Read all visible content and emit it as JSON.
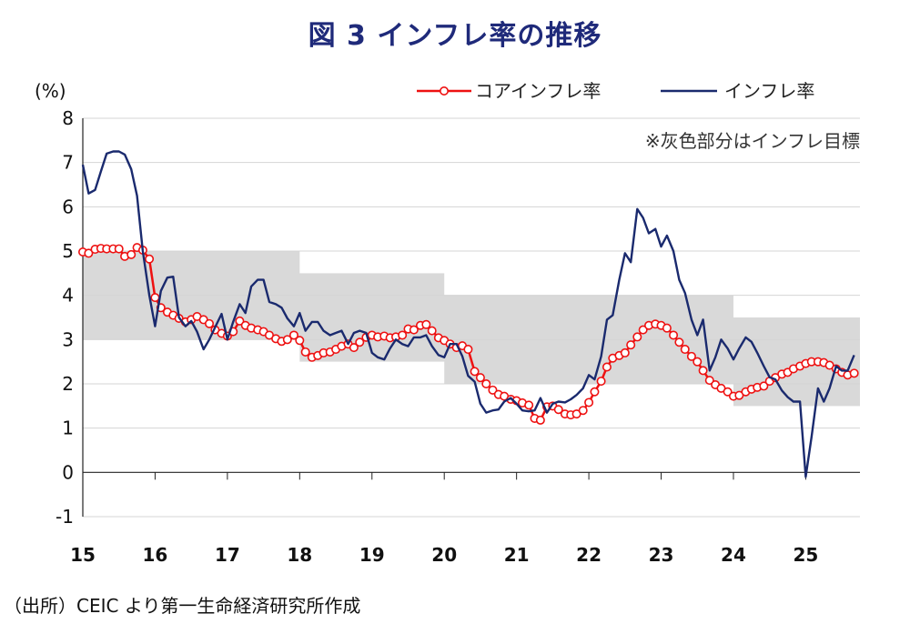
{
  "chart_data": {
    "type": "line",
    "title": "図 3  インフレ率の推移",
    "ylabel": "(%)",
    "ylim": [
      -1,
      8
    ],
    "yticks": [
      "8",
      "7",
      "6",
      "5",
      "4",
      "3",
      "2",
      "1",
      "0",
      "-1"
    ],
    "xlim": [
      2015.0,
      2025.75
    ],
    "xticks": [
      "15",
      "16",
      "17",
      "18",
      "19",
      "20",
      "21",
      "22",
      "23",
      "24",
      "25"
    ],
    "grid": "horizontal",
    "legend_position": "top-right",
    "annotation": "※灰色部分はインフレ目標",
    "target_band": {
      "color": "#d9d9d9",
      "segments": [
        {
          "x0": 2015.0,
          "x1": 2018.0,
          "low": 3.0,
          "high": 5.0
        },
        {
          "x0": 2018.0,
          "x1": 2020.0,
          "low": 2.5,
          "high": 4.5
        },
        {
          "x0": 2020.0,
          "x1": 2024.0,
          "low": 2.0,
          "high": 4.0
        },
        {
          "x0": 2024.0,
          "x1": 2025.75,
          "low": 1.5,
          "high": 3.5
        }
      ]
    },
    "series": [
      {
        "name": "コアインフレ率",
        "color": "#ee1111",
        "marker": "open-circle",
        "points": [
          [
            2015.0,
            4.98
          ],
          [
            2015.08,
            4.95
          ],
          [
            2015.17,
            5.04
          ],
          [
            2015.25,
            5.06
          ],
          [
            2015.33,
            5.05
          ],
          [
            2015.42,
            5.05
          ],
          [
            2015.5,
            5.05
          ],
          [
            2015.58,
            4.88
          ],
          [
            2015.67,
            4.92
          ],
          [
            2015.75,
            5.08
          ],
          [
            2015.83,
            5.02
          ],
          [
            2015.92,
            4.82
          ],
          [
            2016.0,
            3.95
          ],
          [
            2016.08,
            3.72
          ],
          [
            2016.17,
            3.62
          ],
          [
            2016.25,
            3.55
          ],
          [
            2016.33,
            3.48
          ],
          [
            2016.42,
            3.4
          ],
          [
            2016.5,
            3.45
          ],
          [
            2016.58,
            3.52
          ],
          [
            2016.67,
            3.45
          ],
          [
            2016.75,
            3.36
          ],
          [
            2016.83,
            3.22
          ],
          [
            2016.92,
            3.14
          ],
          [
            2017.0,
            3.08
          ],
          [
            2017.08,
            3.18
          ],
          [
            2017.17,
            3.42
          ],
          [
            2017.25,
            3.32
          ],
          [
            2017.33,
            3.26
          ],
          [
            2017.42,
            3.22
          ],
          [
            2017.5,
            3.18
          ],
          [
            2017.58,
            3.1
          ],
          [
            2017.67,
            3.02
          ],
          [
            2017.75,
            2.96
          ],
          [
            2017.83,
            3.0
          ],
          [
            2017.92,
            3.1
          ],
          [
            2018.0,
            2.98
          ],
          [
            2018.08,
            2.72
          ],
          [
            2018.17,
            2.6
          ],
          [
            2018.25,
            2.64
          ],
          [
            2018.33,
            2.7
          ],
          [
            2018.42,
            2.72
          ],
          [
            2018.5,
            2.78
          ],
          [
            2018.58,
            2.85
          ],
          [
            2018.67,
            2.9
          ],
          [
            2018.75,
            2.82
          ],
          [
            2018.83,
            2.94
          ],
          [
            2018.92,
            3.05
          ],
          [
            2019.0,
            3.1
          ],
          [
            2019.08,
            3.06
          ],
          [
            2019.17,
            3.08
          ],
          [
            2019.25,
            3.04
          ],
          [
            2019.33,
            3.06
          ],
          [
            2019.42,
            3.1
          ],
          [
            2019.5,
            3.24
          ],
          [
            2019.58,
            3.22
          ],
          [
            2019.67,
            3.32
          ],
          [
            2019.75,
            3.34
          ],
          [
            2019.83,
            3.2
          ],
          [
            2019.92,
            3.04
          ],
          [
            2020.0,
            2.98
          ],
          [
            2020.08,
            2.9
          ],
          [
            2020.17,
            2.82
          ],
          [
            2020.25,
            2.86
          ],
          [
            2020.33,
            2.78
          ],
          [
            2020.42,
            2.28
          ],
          [
            2020.5,
            2.14
          ],
          [
            2020.58,
            2.0
          ],
          [
            2020.67,
            1.86
          ],
          [
            2020.75,
            1.76
          ],
          [
            2020.83,
            1.72
          ],
          [
            2020.92,
            1.65
          ],
          [
            2021.0,
            1.62
          ],
          [
            2021.08,
            1.57
          ],
          [
            2021.17,
            1.52
          ],
          [
            2021.25,
            1.22
          ],
          [
            2021.33,
            1.18
          ],
          [
            2021.42,
            1.48
          ],
          [
            2021.5,
            1.5
          ],
          [
            2021.58,
            1.42
          ],
          [
            2021.67,
            1.32
          ],
          [
            2021.75,
            1.3
          ],
          [
            2021.83,
            1.32
          ],
          [
            2021.92,
            1.4
          ],
          [
            2022.0,
            1.58
          ],
          [
            2022.08,
            1.82
          ],
          [
            2022.17,
            2.06
          ],
          [
            2022.25,
            2.38
          ],
          [
            2022.33,
            2.58
          ],
          [
            2022.42,
            2.64
          ],
          [
            2022.5,
            2.7
          ],
          [
            2022.58,
            2.88
          ],
          [
            2022.67,
            3.06
          ],
          [
            2022.75,
            3.22
          ],
          [
            2022.83,
            3.32
          ],
          [
            2022.92,
            3.35
          ],
          [
            2023.0,
            3.32
          ],
          [
            2023.08,
            3.26
          ],
          [
            2023.17,
            3.1
          ],
          [
            2023.25,
            2.94
          ],
          [
            2023.33,
            2.78
          ],
          [
            2023.42,
            2.62
          ],
          [
            2023.5,
            2.5
          ],
          [
            2023.58,
            2.3
          ],
          [
            2023.67,
            2.08
          ],
          [
            2023.75,
            1.98
          ],
          [
            2023.83,
            1.9
          ],
          [
            2023.92,
            1.82
          ],
          [
            2024.0,
            1.72
          ],
          [
            2024.08,
            1.74
          ],
          [
            2024.17,
            1.82
          ],
          [
            2024.25,
            1.88
          ],
          [
            2024.33,
            1.92
          ],
          [
            2024.42,
            1.95
          ],
          [
            2024.5,
            2.06
          ],
          [
            2024.58,
            2.14
          ],
          [
            2024.67,
            2.22
          ],
          [
            2024.75,
            2.26
          ],
          [
            2024.83,
            2.34
          ],
          [
            2024.92,
            2.4
          ],
          [
            2025.0,
            2.46
          ],
          [
            2025.08,
            2.5
          ],
          [
            2025.17,
            2.5
          ],
          [
            2025.25,
            2.48
          ],
          [
            2025.33,
            2.42
          ],
          [
            2025.42,
            2.34
          ],
          [
            2025.5,
            2.26
          ],
          [
            2025.58,
            2.2
          ],
          [
            2025.67,
            2.24
          ]
        ]
      },
      {
        "name": "インフレ率",
        "color": "#1a2a6e",
        "marker": "none",
        "points": [
          [
            2015.0,
            6.95
          ],
          [
            2015.08,
            6.3
          ],
          [
            2015.17,
            6.38
          ],
          [
            2015.25,
            6.8
          ],
          [
            2015.33,
            7.2
          ],
          [
            2015.42,
            7.25
          ],
          [
            2015.5,
            7.25
          ],
          [
            2015.58,
            7.18
          ],
          [
            2015.67,
            6.85
          ],
          [
            2015.75,
            6.25
          ],
          [
            2015.83,
            5.0
          ],
          [
            2015.92,
            4.0
          ],
          [
            2016.0,
            3.3
          ],
          [
            2016.08,
            4.1
          ],
          [
            2016.17,
            4.4
          ],
          [
            2016.25,
            4.42
          ],
          [
            2016.33,
            3.5
          ],
          [
            2016.42,
            3.3
          ],
          [
            2016.5,
            3.42
          ],
          [
            2016.58,
            3.18
          ],
          [
            2016.67,
            2.78
          ],
          [
            2016.75,
            3.0
          ],
          [
            2016.83,
            3.28
          ],
          [
            2016.92,
            3.58
          ],
          [
            2017.0,
            3.0
          ],
          [
            2017.08,
            3.4
          ],
          [
            2017.17,
            3.8
          ],
          [
            2017.25,
            3.6
          ],
          [
            2017.33,
            4.2
          ],
          [
            2017.42,
            4.35
          ],
          [
            2017.5,
            4.35
          ],
          [
            2017.58,
            3.85
          ],
          [
            2017.67,
            3.8
          ],
          [
            2017.75,
            3.72
          ],
          [
            2017.83,
            3.48
          ],
          [
            2017.92,
            3.3
          ],
          [
            2018.0,
            3.6
          ],
          [
            2018.08,
            3.2
          ],
          [
            2018.17,
            3.4
          ],
          [
            2018.25,
            3.4
          ],
          [
            2018.33,
            3.2
          ],
          [
            2018.42,
            3.1
          ],
          [
            2018.5,
            3.15
          ],
          [
            2018.58,
            3.2
          ],
          [
            2018.67,
            2.9
          ],
          [
            2018.75,
            3.15
          ],
          [
            2018.83,
            3.2
          ],
          [
            2018.92,
            3.15
          ],
          [
            2019.0,
            2.7
          ],
          [
            2019.08,
            2.6
          ],
          [
            2019.17,
            2.55
          ],
          [
            2019.25,
            2.8
          ],
          [
            2019.33,
            3.0
          ],
          [
            2019.42,
            2.9
          ],
          [
            2019.5,
            2.85
          ],
          [
            2019.58,
            3.05
          ],
          [
            2019.67,
            3.05
          ],
          [
            2019.75,
            3.1
          ],
          [
            2019.83,
            2.85
          ],
          [
            2019.92,
            2.65
          ],
          [
            2020.0,
            2.6
          ],
          [
            2020.08,
            2.9
          ],
          [
            2020.17,
            2.9
          ],
          [
            2020.25,
            2.62
          ],
          [
            2020.33,
            2.18
          ],
          [
            2020.42,
            2.05
          ],
          [
            2020.5,
            1.55
          ],
          [
            2020.58,
            1.35
          ],
          [
            2020.67,
            1.4
          ],
          [
            2020.75,
            1.42
          ],
          [
            2020.83,
            1.6
          ],
          [
            2020.92,
            1.68
          ],
          [
            2021.0,
            1.55
          ],
          [
            2021.08,
            1.4
          ],
          [
            2021.17,
            1.38
          ],
          [
            2021.25,
            1.4
          ],
          [
            2021.33,
            1.68
          ],
          [
            2021.42,
            1.35
          ],
          [
            2021.5,
            1.55
          ],
          [
            2021.58,
            1.6
          ],
          [
            2021.67,
            1.58
          ],
          [
            2021.75,
            1.65
          ],
          [
            2021.83,
            1.75
          ],
          [
            2021.92,
            1.9
          ],
          [
            2022.0,
            2.2
          ],
          [
            2022.08,
            2.1
          ],
          [
            2022.17,
            2.62
          ],
          [
            2022.25,
            3.45
          ],
          [
            2022.33,
            3.55
          ],
          [
            2022.42,
            4.35
          ],
          [
            2022.5,
            4.95
          ],
          [
            2022.58,
            4.75
          ],
          [
            2022.67,
            5.95
          ],
          [
            2022.75,
            5.75
          ],
          [
            2022.83,
            5.4
          ],
          [
            2022.92,
            5.5
          ],
          [
            2023.0,
            5.1
          ],
          [
            2023.08,
            5.35
          ],
          [
            2023.17,
            5.0
          ],
          [
            2023.25,
            4.35
          ],
          [
            2023.33,
            4.05
          ],
          [
            2023.42,
            3.45
          ],
          [
            2023.5,
            3.1
          ],
          [
            2023.58,
            3.45
          ],
          [
            2023.67,
            2.3
          ],
          [
            2023.75,
            2.6
          ],
          [
            2023.83,
            3.0
          ],
          [
            2023.92,
            2.8
          ],
          [
            2024.0,
            2.55
          ],
          [
            2024.08,
            2.8
          ],
          [
            2024.17,
            3.05
          ],
          [
            2024.25,
            2.95
          ],
          [
            2024.33,
            2.7
          ],
          [
            2024.42,
            2.4
          ],
          [
            2024.5,
            2.15
          ],
          [
            2024.58,
            2.1
          ],
          [
            2024.67,
            1.85
          ],
          [
            2024.75,
            1.7
          ],
          [
            2024.83,
            1.6
          ],
          [
            2024.92,
            1.6
          ],
          [
            2025.0,
            -0.1
          ],
          [
            2025.08,
            0.8
          ],
          [
            2025.17,
            1.9
          ],
          [
            2025.25,
            1.6
          ],
          [
            2025.33,
            1.9
          ],
          [
            2025.42,
            2.4
          ],
          [
            2025.5,
            2.3
          ],
          [
            2025.58,
            2.3
          ],
          [
            2025.67,
            2.65
          ]
        ]
      }
    ]
  },
  "source_note": "（出所）CEIC より第一生命経済研究所作成"
}
